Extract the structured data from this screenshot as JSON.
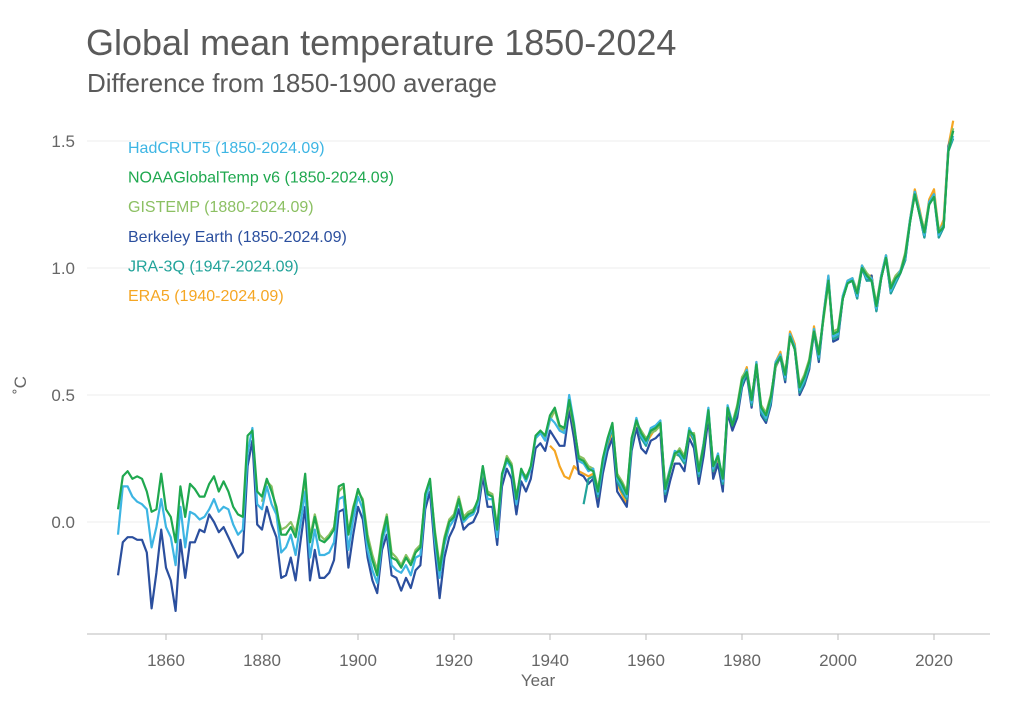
{
  "chart_data": {
    "type": "line",
    "title": "Global mean temperature 1850-2024",
    "subtitle": "Difference from 1850-1900 average",
    "xlabel": "Year",
    "ylabel": "˚C",
    "xlim": [
      1850,
      2024
    ],
    "ylim": [
      -0.4,
      1.6
    ],
    "xticks": [
      "1860",
      "1880",
      "1900",
      "1920",
      "1940",
      "1960",
      "1980",
      "2000",
      "2020"
    ],
    "yticks": [
      "0.0",
      "0.5",
      "1.0",
      "1.5"
    ],
    "grid": "horizontal",
    "legend_position": "top-left",
    "series": [
      {
        "name": "ERA5 (1940-2024.09)",
        "color": "#f5a623",
        "start": 1940,
        "values": [
          0.3,
          0.28,
          0.22,
          0.18,
          0.17,
          0.22,
          0.2,
          0.19,
          0.18,
          0.19,
          0.09,
          0.21,
          0.3,
          0.36,
          0.15,
          0.11,
          0.07,
          0.3,
          0.4,
          0.33,
          0.31,
          0.34,
          0.37,
          0.38,
          0.12,
          0.2,
          0.27,
          0.26,
          0.23,
          0.35,
          0.32,
          0.17,
          0.29,
          0.43,
          0.18,
          0.24,
          0.13,
          0.44,
          0.37,
          0.43,
          0.56,
          0.61,
          0.46,
          0.63,
          0.44,
          0.4,
          0.48,
          0.63,
          0.67,
          0.57,
          0.75,
          0.7,
          0.52,
          0.56,
          0.62,
          0.77,
          0.65,
          0.82,
          0.97,
          0.73,
          0.73,
          0.88,
          0.95,
          0.96,
          0.89,
          1.01,
          0.97,
          0.97,
          0.84,
          0.97,
          1.05,
          0.91,
          0.96,
          0.99,
          1.04,
          1.19,
          1.31,
          1.23,
          1.14,
          1.27,
          1.31,
          1.14,
          1.19,
          1.48,
          1.58
        ]
      },
      {
        "name": "Berkeley Earth (1850-2024.09)",
        "color": "#2b4f9e",
        "start": 1850,
        "values": [
          -0.21,
          -0.08,
          -0.06,
          -0.06,
          -0.07,
          -0.07,
          -0.12,
          -0.34,
          -0.2,
          -0.03,
          -0.18,
          -0.23,
          -0.35,
          -0.07,
          -0.22,
          -0.08,
          -0.08,
          -0.03,
          -0.04,
          0.03,
          0.0,
          -0.04,
          -0.02,
          -0.06,
          -0.1,
          -0.14,
          -0.12,
          0.22,
          0.32,
          -0.01,
          -0.03,
          0.06,
          -0.01,
          -0.06,
          -0.22,
          -0.21,
          -0.14,
          -0.23,
          -0.08,
          0.06,
          -0.23,
          -0.11,
          -0.22,
          -0.22,
          -0.2,
          -0.15,
          0.04,
          0.05,
          -0.18,
          -0.05,
          0.06,
          0.01,
          -0.14,
          -0.23,
          -0.28,
          -0.11,
          -0.05,
          -0.21,
          -0.22,
          -0.27,
          -0.22,
          -0.26,
          -0.19,
          -0.17,
          0.05,
          0.12,
          -0.11,
          -0.3,
          -0.14,
          -0.06,
          -0.02,
          0.05,
          -0.03,
          -0.01,
          0.0,
          0.04,
          0.18,
          0.06,
          0.06,
          -0.09,
          0.14,
          0.21,
          0.17,
          0.03,
          0.16,
          0.12,
          0.17,
          0.29,
          0.31,
          0.28,
          0.36,
          0.33,
          0.3,
          0.3,
          0.44,
          0.33,
          0.19,
          0.18,
          0.15,
          0.17,
          0.06,
          0.19,
          0.28,
          0.33,
          0.12,
          0.09,
          0.06,
          0.28,
          0.37,
          0.29,
          0.27,
          0.32,
          0.33,
          0.35,
          0.08,
          0.16,
          0.23,
          0.23,
          0.2,
          0.33,
          0.29,
          0.15,
          0.26,
          0.41,
          0.17,
          0.23,
          0.12,
          0.43,
          0.36,
          0.41,
          0.53,
          0.58,
          0.45,
          0.61,
          0.42,
          0.39,
          0.46,
          0.61,
          0.65,
          0.55,
          0.73,
          0.68,
          0.5,
          0.54,
          0.6,
          0.75,
          0.63,
          0.81,
          0.96,
          0.71,
          0.72,
          0.88,
          0.94,
          0.95,
          0.88,
          1.0,
          0.95,
          0.97,
          0.83,
          0.96,
          1.04,
          0.9,
          0.94,
          0.98,
          1.03,
          1.18,
          1.3,
          1.21,
          1.12,
          1.26,
          1.29,
          1.12,
          1.16,
          1.48,
          1.54
        ]
      },
      {
        "name": "JRA-3Q (1947-2024.09)",
        "color": "#22a39a",
        "start": 1947,
        "values": [
          0.07,
          0.17,
          0.18,
          0.1,
          0.22,
          0.31,
          0.37,
          0.16,
          0.12,
          0.09,
          0.3,
          0.4,
          0.33,
          0.3,
          0.36,
          0.37,
          0.39,
          0.11,
          0.2,
          0.27,
          0.26,
          0.23,
          0.36,
          0.32,
          0.18,
          0.3,
          0.44,
          0.2,
          0.26,
          0.15,
          0.45,
          0.38,
          0.43,
          0.54,
          0.59,
          0.46,
          0.62,
          0.43,
          0.4,
          0.47,
          0.62,
          0.65,
          0.56,
          0.73,
          0.68,
          0.51,
          0.55,
          0.61,
          0.75,
          0.64,
          0.81,
          0.96,
          0.72,
          0.73,
          0.88,
          0.94,
          0.95,
          0.88,
          1.0,
          0.95,
          0.95,
          0.83,
          0.96,
          1.04,
          0.9,
          0.94,
          0.98,
          1.03,
          1.18,
          1.29,
          1.21,
          1.12,
          1.25,
          1.28,
          1.12,
          1.16,
          1.46,
          1.51
        ]
      },
      {
        "name": "GISTEMP (1880-2024.09)",
        "color": "#8cc063",
        "start": 1880,
        "values": [
          0.08,
          0.16,
          0.14,
          0.04,
          -0.03,
          -0.02,
          0.0,
          -0.04,
          0.05,
          0.17,
          -0.06,
          0.03,
          -0.05,
          -0.07,
          -0.05,
          -0.02,
          0.12,
          0.14,
          -0.04,
          0.06,
          0.12,
          0.09,
          -0.05,
          -0.13,
          -0.19,
          -0.05,
          0.03,
          -0.12,
          -0.14,
          -0.17,
          -0.13,
          -0.16,
          -0.11,
          -0.09,
          0.1,
          0.15,
          -0.03,
          -0.17,
          -0.06,
          0.01,
          0.03,
          0.1,
          0.02,
          0.04,
          0.05,
          0.08,
          0.2,
          0.12,
          0.11,
          -0.02,
          0.18,
          0.26,
          0.23,
          0.1,
          0.2,
          0.18,
          0.21,
          0.33,
          0.35,
          0.33,
          0.4,
          0.44,
          0.37,
          0.36,
          0.47,
          0.37,
          0.26,
          0.25,
          0.22,
          0.21,
          0.13,
          0.24,
          0.32,
          0.38,
          0.19,
          0.16,
          0.12,
          0.32,
          0.39,
          0.36,
          0.33,
          0.35,
          0.36,
          0.38,
          0.14,
          0.21,
          0.26,
          0.29,
          0.26,
          0.35,
          0.35,
          0.21,
          0.31,
          0.43,
          0.23,
          0.25,
          0.18,
          0.44,
          0.39,
          0.46,
          0.57,
          0.6,
          0.49,
          0.61,
          0.46,
          0.43,
          0.5,
          0.61,
          0.66,
          0.59,
          0.72,
          0.69,
          0.54,
          0.58,
          0.64,
          0.76,
          0.67,
          0.8,
          0.94,
          0.75,
          0.76,
          0.89,
          0.95,
          0.96,
          0.91,
          1.01,
          0.98,
          0.96,
          0.86,
          0.97,
          1.05,
          0.93,
          0.97,
          0.99,
          1.06,
          1.19,
          1.3,
          1.22,
          1.15,
          1.26,
          1.29,
          1.15,
          1.17,
          1.47,
          1.55
        ]
      },
      {
        "name": "HadCRUT5 (1850-2024.09)",
        "color": "#3db5e3",
        "start": 1850,
        "values": [
          -0.05,
          0.14,
          0.14,
          0.1,
          0.08,
          0.07,
          0.05,
          -0.1,
          -0.02,
          0.09,
          -0.02,
          -0.06,
          -0.17,
          0.06,
          -0.1,
          0.04,
          0.03,
          0.01,
          0.02,
          0.05,
          0.09,
          0.04,
          0.06,
          0.05,
          -0.01,
          -0.05,
          -0.03,
          0.27,
          0.37,
          0.07,
          0.05,
          0.14,
          0.07,
          0.03,
          -0.12,
          -0.1,
          -0.05,
          -0.13,
          -0.01,
          0.12,
          -0.14,
          -0.03,
          -0.13,
          -0.13,
          -0.12,
          -0.08,
          0.09,
          0.1,
          -0.11,
          0.01,
          0.1,
          0.05,
          -0.11,
          -0.19,
          -0.24,
          -0.08,
          -0.01,
          -0.17,
          -0.19,
          -0.2,
          -0.17,
          -0.21,
          -0.14,
          -0.13,
          0.08,
          0.16,
          -0.07,
          -0.22,
          -0.09,
          -0.02,
          0.01,
          0.08,
          0.0,
          0.02,
          0.03,
          0.07,
          0.22,
          0.09,
          0.09,
          -0.06,
          0.18,
          0.24,
          0.21,
          0.07,
          0.2,
          0.16,
          0.21,
          0.33,
          0.35,
          0.32,
          0.41,
          0.39,
          0.36,
          0.35,
          0.5,
          0.39,
          0.24,
          0.23,
          0.2,
          0.21,
          0.11,
          0.23,
          0.32,
          0.38,
          0.17,
          0.14,
          0.1,
          0.32,
          0.41,
          0.34,
          0.31,
          0.37,
          0.38,
          0.4,
          0.12,
          0.21,
          0.28,
          0.27,
          0.24,
          0.37,
          0.33,
          0.19,
          0.31,
          0.45,
          0.21,
          0.27,
          0.16,
          0.46,
          0.39,
          0.44,
          0.55,
          0.6,
          0.47,
          0.63,
          0.44,
          0.41,
          0.48,
          0.63,
          0.66,
          0.57,
          0.74,
          0.69,
          0.52,
          0.56,
          0.62,
          0.76,
          0.65,
          0.82,
          0.97,
          0.73,
          0.74,
          0.89,
          0.95,
          0.96,
          0.89,
          1.01,
          0.96,
          0.96,
          0.84,
          0.97,
          1.05,
          0.91,
          0.95,
          0.99,
          1.04,
          1.19,
          1.3,
          1.22,
          1.13,
          1.26,
          1.29,
          1.13,
          1.17,
          1.47,
          1.52
        ]
      },
      {
        "name": "NOAAGlobalTemp v6 (1850-2024.09)",
        "color": "#1fa84f",
        "start": 1850,
        "values": [
          0.05,
          0.18,
          0.2,
          0.17,
          0.18,
          0.17,
          0.12,
          0.04,
          0.05,
          0.19,
          0.05,
          0.02,
          -0.08,
          0.14,
          0.02,
          0.15,
          0.13,
          0.1,
          0.1,
          0.15,
          0.18,
          0.12,
          0.16,
          0.12,
          0.06,
          0.03,
          0.02,
          0.34,
          0.36,
          0.12,
          0.1,
          0.17,
          0.12,
          0.06,
          -0.05,
          -0.05,
          -0.02,
          -0.06,
          0.05,
          0.19,
          -0.08,
          0.02,
          -0.07,
          -0.08,
          -0.06,
          -0.03,
          0.14,
          0.15,
          -0.05,
          0.05,
          0.13,
          0.08,
          -0.07,
          -0.15,
          -0.21,
          -0.06,
          0.02,
          -0.14,
          -0.15,
          -0.18,
          -0.14,
          -0.17,
          -0.12,
          -0.1,
          0.11,
          0.17,
          -0.04,
          -0.19,
          -0.07,
          0.0,
          0.02,
          0.09,
          0.01,
          0.03,
          0.04,
          0.09,
          0.22,
          0.11,
          0.1,
          -0.03,
          0.19,
          0.25,
          0.22,
          0.09,
          0.21,
          0.17,
          0.22,
          0.34,
          0.36,
          0.34,
          0.42,
          0.45,
          0.38,
          0.37,
          0.48,
          0.38,
          0.25,
          0.24,
          0.21,
          0.2,
          0.12,
          0.25,
          0.33,
          0.39,
          0.18,
          0.15,
          0.11,
          0.33,
          0.4,
          0.35,
          0.32,
          0.36,
          0.37,
          0.39,
          0.13,
          0.2,
          0.27,
          0.28,
          0.25,
          0.36,
          0.34,
          0.2,
          0.3,
          0.44,
          0.22,
          0.26,
          0.17,
          0.45,
          0.38,
          0.45,
          0.56,
          0.59,
          0.48,
          0.62,
          0.45,
          0.42,
          0.49,
          0.62,
          0.65,
          0.58,
          0.73,
          0.68,
          0.53,
          0.57,
          0.63,
          0.75,
          0.66,
          0.81,
          0.95,
          0.74,
          0.75,
          0.88,
          0.94,
          0.95,
          0.9,
          1.0,
          0.97,
          0.95,
          0.85,
          0.96,
          1.04,
          0.92,
          0.96,
          0.98,
          1.05,
          1.18,
          1.29,
          1.21,
          1.14,
          1.25,
          1.28,
          1.14,
          1.16,
          1.46,
          1.54
        ]
      }
    ],
    "legend_order": [
      "HadCRUT5 (1850-2024.09)",
      "NOAAGlobalTemp v6 (1850-2024.09)",
      "GISTEMP (1880-2024.09)",
      "Berkeley Earth (1850-2024.09)",
      "JRA-3Q (1947-2024.09)",
      "ERA5 (1940-2024.09)"
    ]
  }
}
